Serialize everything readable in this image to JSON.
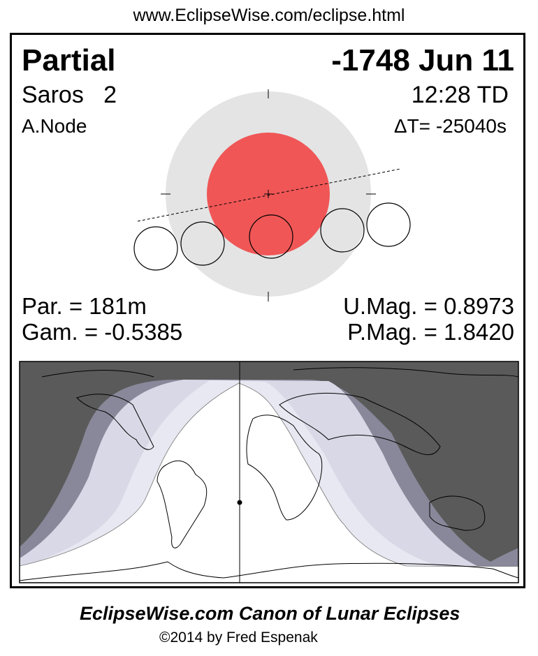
{
  "url": "www.EclipseWise.com/eclipse.html",
  "eclipse": {
    "type": "Partial",
    "date": "-1748 Jun 11",
    "saros": "Saros   2",
    "time": "12:28 TD",
    "node": "A.Node",
    "delta_t": "ΔT= -25040s"
  },
  "stats": {
    "par": "Par. = 181m",
    "gam": "Gam. = -0.5385",
    "umag": "U.Mag. = 0.8973",
    "pmag": "P.Mag. = 1.8420"
  },
  "colors": {
    "penumbra": "#e4e4e4",
    "umbra": "#f05656",
    "night": "#5a5a5a",
    "penumbral_band": "#88889a",
    "partial_visible": "#d8d8e6",
    "umbral_visible": "#e8e8f2"
  },
  "footer": {
    "title": "EclipseWise.com Canon of Lunar Eclipses",
    "copyright": "©2014 by Fred Espenak"
  }
}
